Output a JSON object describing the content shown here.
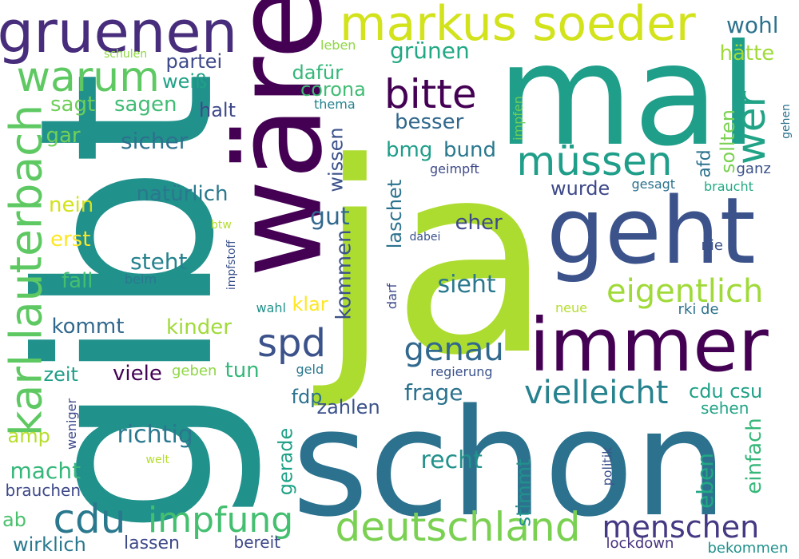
{
  "words": [
    {
      "text": "ja",
      "color": "#addc30"
    },
    {
      "text": "gibt",
      "color": "#21918c"
    },
    {
      "text": "schon",
      "color": "#2c728e"
    },
    {
      "text": "mal",
      "color": "#1f9e89"
    },
    {
      "text": "wäre",
      "color": "#440154"
    },
    {
      "text": "geht",
      "color": "#3b528b"
    },
    {
      "text": "immer",
      "color": "#440154"
    },
    {
      "text": "gruenen",
      "color": "#472d7b"
    },
    {
      "text": "markus soeder",
      "color": "#d2e21b"
    },
    {
      "text": "karl lauterbach",
      "color": "#5ec962"
    },
    {
      "text": "deutschland",
      "color": "#7ad151"
    },
    {
      "text": "warum",
      "color": "#5ec962"
    },
    {
      "text": "bitte",
      "color": "#440154"
    },
    {
      "text": "müssen",
      "color": "#1f9e89"
    },
    {
      "text": "wer",
      "color": "#20a386"
    },
    {
      "text": "menschen",
      "color": "#443983"
    },
    {
      "text": "impfung",
      "color": "#44bf70"
    },
    {
      "text": "cdu",
      "color": "#2a788e"
    },
    {
      "text": "genau",
      "color": "#31688e"
    },
    {
      "text": "vielleicht",
      "color": "#26828e"
    },
    {
      "text": "spd",
      "color": "#3b528b"
    },
    {
      "text": "eigentlich",
      "color": "#a0da39"
    },
    {
      "text": "wohl",
      "color": "#2c728e"
    },
    {
      "text": "grünen",
      "color": "#22a884"
    },
    {
      "text": "hätte",
      "color": "#a0da39"
    },
    {
      "text": "partei",
      "color": "#3e4989"
    },
    {
      "text": "weiß",
      "color": "#1fa187"
    },
    {
      "text": "dafür",
      "color": "#35b779"
    },
    {
      "text": "corona",
      "color": "#3fbc73"
    },
    {
      "text": "sagt",
      "color": "#6ece58"
    },
    {
      "text": "sagen",
      "color": "#3fbc73"
    },
    {
      "text": "halt",
      "color": "#3e4989"
    },
    {
      "text": "besser",
      "color": "#31688e"
    },
    {
      "text": "sicher",
      "color": "#2c728e"
    },
    {
      "text": "gar",
      "color": "#73d056"
    },
    {
      "text": "bmg",
      "color": "#1f9e89"
    },
    {
      "text": "bund",
      "color": "#2a788e"
    },
    {
      "text": "wissen",
      "color": "#3b528b"
    },
    {
      "text": "natürlich",
      "color": "#2a788e"
    },
    {
      "text": "nein",
      "color": "#d2e21b"
    },
    {
      "text": "gut",
      "color": "#31688e"
    },
    {
      "text": "eher",
      "color": "#3e4989"
    },
    {
      "text": "laschet",
      "color": "#2c728e"
    },
    {
      "text": "erst",
      "color": "#fde725"
    },
    {
      "text": "steht",
      "color": "#26828e"
    },
    {
      "text": "fall",
      "color": "#44bf70"
    },
    {
      "text": "sieht",
      "color": "#2a788e"
    },
    {
      "text": "klar",
      "color": "#fde725"
    },
    {
      "text": "kommen",
      "color": "#3b528b"
    },
    {
      "text": "kommt",
      "color": "#31688e"
    },
    {
      "text": "kinder",
      "color": "#a0da39"
    },
    {
      "text": "zeit",
      "color": "#1f9e89"
    },
    {
      "text": "viele",
      "color": "#440154"
    },
    {
      "text": "tun",
      "color": "#35b779"
    },
    {
      "text": "frage",
      "color": "#2c728e"
    },
    {
      "text": "fdp",
      "color": "#2c728e"
    },
    {
      "text": "zahlen",
      "color": "#3b528b"
    },
    {
      "text": "richtig",
      "color": "#2a788e"
    },
    {
      "text": "recht",
      "color": "#21918c"
    },
    {
      "text": "amp",
      "color": "#b5de2b"
    },
    {
      "text": "macht",
      "color": "#35b779"
    },
    {
      "text": "cdu csu",
      "color": "#1fa187"
    },
    {
      "text": "sehen",
      "color": "#20a386"
    },
    {
      "text": "einfach",
      "color": "#35b779"
    },
    {
      "text": "eben",
      "color": "#22a884"
    },
    {
      "text": "stimmt",
      "color": "#21918c"
    },
    {
      "text": "gerade",
      "color": "#1fa187"
    },
    {
      "text": "wirklich",
      "color": "#2a788e"
    },
    {
      "text": "lassen",
      "color": "#3e4989"
    },
    {
      "text": "ab",
      "color": "#4ac16d"
    },
    {
      "text": "brauchen",
      "color": "#3e4989"
    },
    {
      "text": "bereit",
      "color": "#3e4989"
    },
    {
      "text": "lockdown",
      "color": "#46327e"
    },
    {
      "text": "bekommen",
      "color": "#21918c"
    },
    {
      "text": "wurde",
      "color": "#3e4989"
    },
    {
      "text": "gesagt",
      "color": "#2c728e"
    },
    {
      "text": "braucht",
      "color": "#22a884"
    },
    {
      "text": "ganz",
      "color": "#3b528b"
    },
    {
      "text": "afd",
      "color": "#2c728e"
    },
    {
      "text": "sollten",
      "color": "#7ad151"
    },
    {
      "text": "gehen",
      "color": "#2c728e"
    },
    {
      "text": "impfen",
      "color": "#6ece58"
    },
    {
      "text": "leben",
      "color": "#8fd744"
    },
    {
      "text": "thema",
      "color": "#26828e"
    },
    {
      "text": "schulen",
      "color": "#8fd744"
    },
    {
      "text": "geimpft",
      "color": "#3e4989"
    },
    {
      "text": "btw",
      "color": "#b5de2b"
    },
    {
      "text": "impfstoff",
      "color": "#3b528b"
    },
    {
      "text": "beim",
      "color": "#2a788e"
    },
    {
      "text": "dabei",
      "color": "#3b528b"
    },
    {
      "text": "darf",
      "color": "#3e4989"
    },
    {
      "text": "wahl",
      "color": "#21918c"
    },
    {
      "text": "neue",
      "color": "#b5de2b"
    },
    {
      "text": "rki de",
      "color": "#2c728e"
    },
    {
      "text": "nie",
      "color": "#3b528b"
    },
    {
      "text": "geben",
      "color": "#8fd744"
    },
    {
      "text": "geld",
      "color": "#2a788e"
    },
    {
      "text": "regierung",
      "color": "#3b528b"
    },
    {
      "text": "weniger",
      "color": "#3e4989"
    },
    {
      "text": "welt",
      "color": "#b5de2b"
    },
    {
      "text": "politik",
      "color": "#3b528b"
    }
  ]
}
